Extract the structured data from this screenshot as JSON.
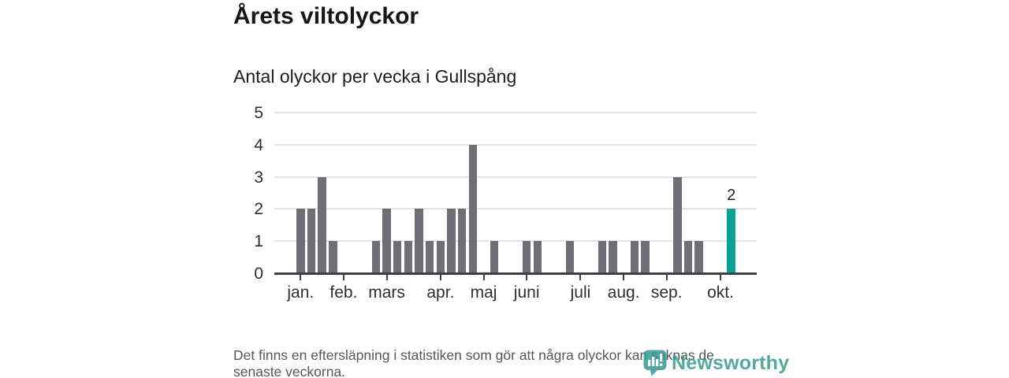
{
  "header": {
    "title": "Årets viltolyckor",
    "subtitle": "Antal olyckor per vecka i Gullspång"
  },
  "chart_data": {
    "type": "bar",
    "title": "Årets viltolyckor",
    "subtitle": "Antal olyckor per vecka i Gullspång",
    "xlabel": "",
    "ylabel": "",
    "ylim": [
      0,
      5
    ],
    "y_ticks": [
      0,
      1,
      2,
      3,
      4,
      5
    ],
    "grid": true,
    "weekly_values": [
      2,
      2,
      3,
      1,
      0,
      0,
      0,
      1,
      2,
      1,
      1,
      2,
      1,
      1,
      2,
      2,
      4,
      0,
      1,
      0,
      0,
      1,
      1,
      0,
      0,
      1,
      0,
      0,
      1,
      1,
      0,
      1,
      1,
      0,
      0,
      3,
      1,
      1,
      0,
      0,
      2
    ],
    "month_ticks": [
      {
        "label": "jan.",
        "week_index": 0
      },
      {
        "label": "feb.",
        "week_index": 4
      },
      {
        "label": "mars",
        "week_index": 8
      },
      {
        "label": "apr.",
        "week_index": 13
      },
      {
        "label": "maj",
        "week_index": 17
      },
      {
        "label": "juni",
        "week_index": 21
      },
      {
        "label": "juli",
        "week_index": 26
      },
      {
        "label": "aug.",
        "week_index": 30
      },
      {
        "label": "sep.",
        "week_index": 34
      },
      {
        "label": "okt.",
        "week_index": 39
      }
    ],
    "highlight": {
      "week_index": 40,
      "value": 2,
      "label": "2"
    },
    "colors": {
      "bar": "#6e6e74",
      "highlight": "#0aa396",
      "gridline": "#e3e3e3",
      "axis": "#3f3f44"
    }
  },
  "footnote": {
    "line1": "Det finns en eftersläpning i statistiken som gör att några olyckor kan saknas de",
    "line2": "senaste veckorna."
  },
  "branding": {
    "logo_text": "Newsworthy",
    "logo_color": "#2f968e"
  }
}
